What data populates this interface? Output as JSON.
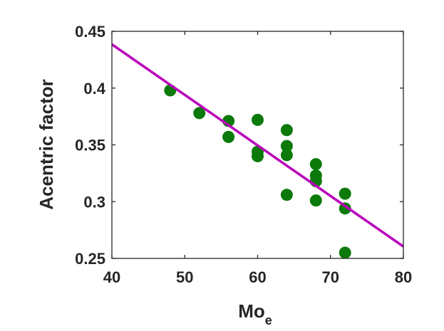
{
  "chart_data": {
    "type": "scatter",
    "xlabel_main": "Mo",
    "xlabel_sub": "e",
    "ylabel": "Acentric factor",
    "xlim": [
      40,
      80
    ],
    "ylim": [
      0.25,
      0.45
    ],
    "xticks": [
      "40",
      "50",
      "60",
      "70",
      "80"
    ],
    "yticks": [
      "0.25",
      "0.3",
      "0.35",
      "0.4",
      "0.45"
    ],
    "grid": false,
    "series": [
      {
        "kind": "points",
        "color": "#0b7a0b",
        "x": [
          48,
          52,
          56,
          56,
          60,
          60,
          60,
          64,
          64,
          64,
          64,
          68,
          68,
          68,
          68,
          72,
          72,
          72
        ],
        "y": [
          0.398,
          0.378,
          0.371,
          0.357,
          0.372,
          0.344,
          0.34,
          0.363,
          0.349,
          0.341,
          0.306,
          0.333,
          0.323,
          0.318,
          0.301,
          0.307,
          0.294,
          0.255
        ]
      },
      {
        "kind": "line",
        "color": "#bb00bb",
        "x": [
          40,
          80
        ],
        "y": [
          0.4385,
          0.2605
        ]
      }
    ]
  }
}
